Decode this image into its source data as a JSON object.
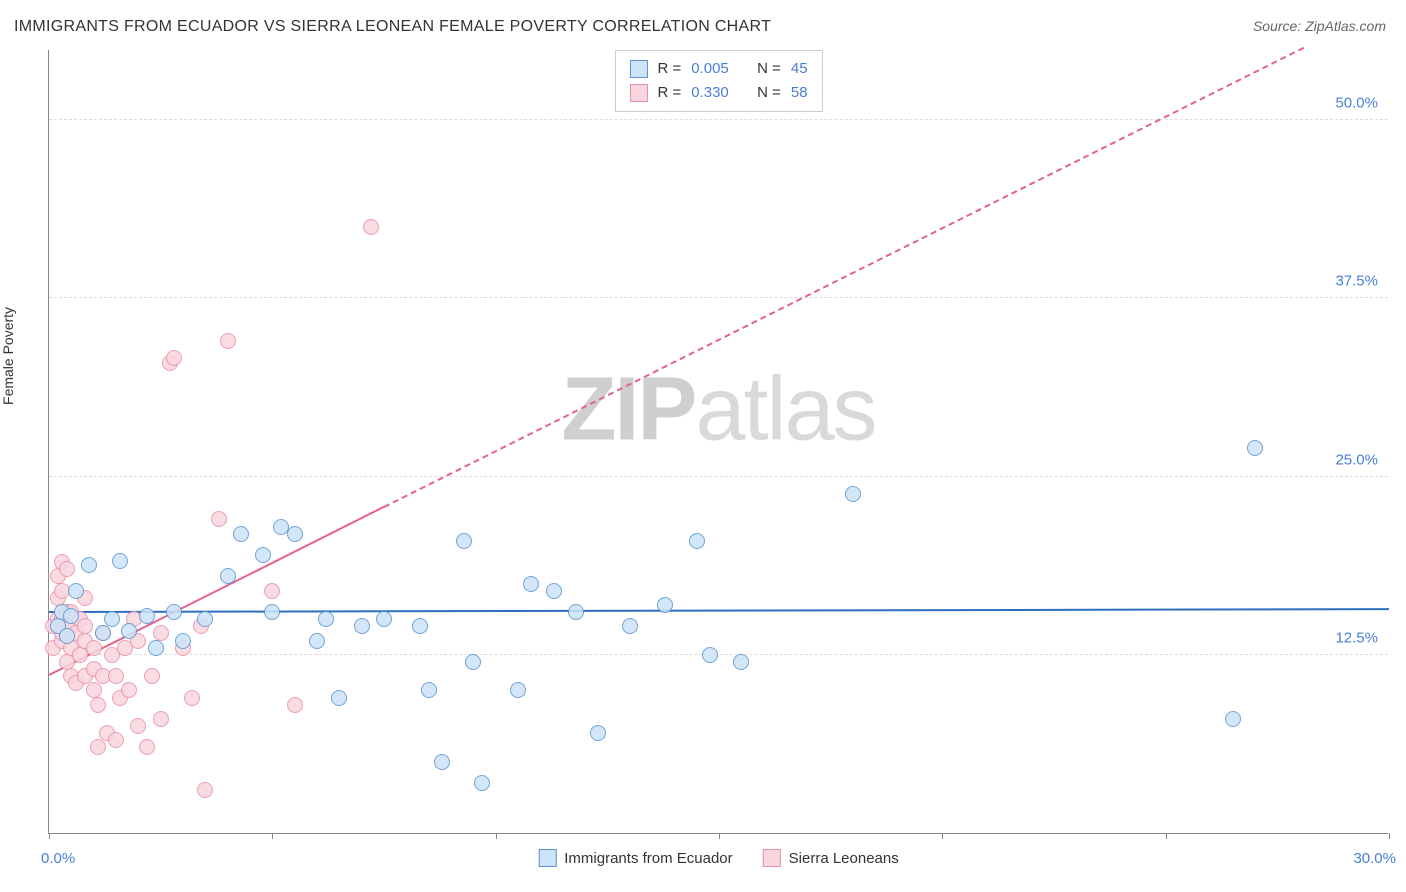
{
  "title": "IMMIGRANTS FROM ECUADOR VS SIERRA LEONEAN FEMALE POVERTY CORRELATION CHART",
  "source": "Source: ZipAtlas.com",
  "ylabel": "Female Poverty",
  "watermark_a": "ZIP",
  "watermark_b": "atlas",
  "chart": {
    "type": "scatter",
    "xlim": [
      0,
      30
    ],
    "ylim": [
      0,
      55
    ],
    "xtick_label_left": "0.0%",
    "xtick_label_right": "30.0%",
    "xtick_positions": [
      0,
      5,
      10,
      15,
      20,
      25,
      30
    ],
    "ytick_positions": [
      12.5,
      25.0,
      37.5,
      50.0
    ],
    "ytick_labels": [
      "12.5%",
      "25.0%",
      "37.5%",
      "50.0%"
    ],
    "grid_color": "#dddddd",
    "background_color": "#ffffff",
    "axis_color": "#888888",
    "tick_label_color": "#4a7fd8",
    "marker_radius": 8,
    "marker_stroke_width": 1.5,
    "trend_line_width": 2
  },
  "series": [
    {
      "key": "ecuador",
      "label": "Immigrants from Ecuador",
      "fill": "#cde3f7",
      "stroke": "#5a93d0",
      "trend_color": "#2f6fc0",
      "trend_dash": "solid",
      "trend_p1": [
        0,
        15.4
      ],
      "trend_p2": [
        30,
        15.6
      ],
      "R_label": "R =",
      "R": "0.005",
      "N_label": "N =",
      "N": "45",
      "points": [
        [
          0.2,
          14.5
        ],
        [
          0.3,
          15.5
        ],
        [
          0.4,
          13.8
        ],
        [
          0.5,
          15.2
        ],
        [
          0.6,
          17.0
        ],
        [
          0.9,
          18.8
        ],
        [
          1.2,
          14.0
        ],
        [
          1.4,
          15.0
        ],
        [
          1.6,
          19.1
        ],
        [
          1.8,
          14.2
        ],
        [
          2.2,
          15.2
        ],
        [
          2.4,
          13.0
        ],
        [
          2.8,
          15.5
        ],
        [
          3.0,
          13.5
        ],
        [
          3.5,
          15.0
        ],
        [
          4.0,
          18.0
        ],
        [
          4.3,
          21.0
        ],
        [
          4.8,
          19.5
        ],
        [
          5.0,
          15.5
        ],
        [
          5.2,
          21.5
        ],
        [
          5.5,
          21.0
        ],
        [
          6.0,
          13.5
        ],
        [
          6.2,
          15.0
        ],
        [
          6.5,
          9.5
        ],
        [
          7.0,
          14.5
        ],
        [
          7.5,
          15.0
        ],
        [
          8.3,
          14.5
        ],
        [
          8.5,
          10.0
        ],
        [
          8.8,
          5.0
        ],
        [
          9.3,
          20.5
        ],
        [
          9.5,
          12.0
        ],
        [
          9.7,
          3.5
        ],
        [
          10.5,
          10.0
        ],
        [
          10.8,
          17.5
        ],
        [
          11.3,
          17.0
        ],
        [
          11.8,
          15.5
        ],
        [
          12.3,
          7.0
        ],
        [
          13.0,
          14.5
        ],
        [
          13.8,
          16.0
        ],
        [
          14.5,
          20.5
        ],
        [
          14.8,
          12.5
        ],
        [
          15.5,
          12.0
        ],
        [
          18.0,
          23.8
        ],
        [
          26.5,
          8.0
        ],
        [
          27.0,
          27.0
        ]
      ]
    },
    {
      "key": "sierra",
      "label": "Sierra Leoneans",
      "fill": "#f9d5de",
      "stroke": "#e98fa8",
      "trend_color": "#e66289",
      "trend_dash": "solid-then-dashed",
      "trend_p1": [
        0,
        11.0
      ],
      "trend_p2": [
        7.5,
        22.8
      ],
      "trend_p3": [
        30,
        58.0
      ],
      "R_label": "R =",
      "R": "0.330",
      "N_label": "N =",
      "N": "58",
      "points": [
        [
          0.1,
          13.0
        ],
        [
          0.1,
          14.5
        ],
        [
          0.2,
          15.0
        ],
        [
          0.2,
          16.5
        ],
        [
          0.2,
          18.0
        ],
        [
          0.3,
          13.5
        ],
        [
          0.3,
          14.0
        ],
        [
          0.3,
          15.0
        ],
        [
          0.3,
          17.0
        ],
        [
          0.3,
          19.0
        ],
        [
          0.4,
          12.0
        ],
        [
          0.4,
          14.0
        ],
        [
          0.4,
          15.5
        ],
        [
          0.4,
          18.5
        ],
        [
          0.5,
          11.0
        ],
        [
          0.5,
          13.0
        ],
        [
          0.5,
          14.5
        ],
        [
          0.5,
          15.5
        ],
        [
          0.6,
          10.5
        ],
        [
          0.6,
          14.0
        ],
        [
          0.7,
          12.5
        ],
        [
          0.7,
          15.0
        ],
        [
          0.8,
          11.0
        ],
        [
          0.8,
          13.5
        ],
        [
          0.8,
          14.5
        ],
        [
          0.8,
          16.5
        ],
        [
          1.0,
          10.0
        ],
        [
          1.0,
          11.5
        ],
        [
          1.0,
          13.0
        ],
        [
          1.1,
          6.0
        ],
        [
          1.1,
          9.0
        ],
        [
          1.2,
          11.0
        ],
        [
          1.2,
          14.0
        ],
        [
          1.3,
          7.0
        ],
        [
          1.4,
          12.5
        ],
        [
          1.5,
          6.5
        ],
        [
          1.5,
          11.0
        ],
        [
          1.6,
          9.5
        ],
        [
          1.7,
          13.0
        ],
        [
          1.8,
          10.0
        ],
        [
          1.9,
          15.0
        ],
        [
          2.0,
          7.5
        ],
        [
          2.0,
          13.5
        ],
        [
          2.2,
          6.0
        ],
        [
          2.3,
          11.0
        ],
        [
          2.5,
          8.0
        ],
        [
          2.5,
          14.0
        ],
        [
          2.7,
          33.0
        ],
        [
          2.8,
          33.3
        ],
        [
          3.0,
          13.0
        ],
        [
          3.2,
          9.5
        ],
        [
          3.4,
          14.5
        ],
        [
          3.5,
          3.0
        ],
        [
          3.8,
          22.0
        ],
        [
          4.0,
          34.5
        ],
        [
          5.0,
          17.0
        ],
        [
          5.5,
          9.0
        ],
        [
          7.2,
          42.5
        ]
      ]
    }
  ],
  "bottom_legend": {
    "items": [
      "Immigrants from Ecuador",
      "Sierra Leoneans"
    ]
  }
}
